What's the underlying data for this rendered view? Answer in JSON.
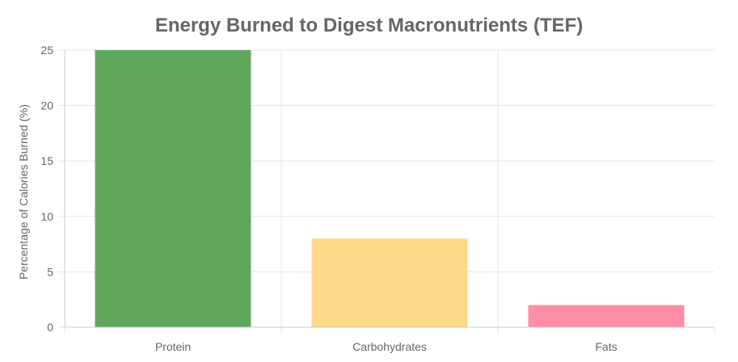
{
  "chart_data": {
    "type": "bar",
    "title": "Energy Burned to Digest Macronutrients (TEF)",
    "xlabel": "",
    "ylabel": "Percentage of Calories Burned (%)",
    "categories": [
      "Protein",
      "Carbohydrates",
      "Fats"
    ],
    "values": [
      25,
      8,
      2
    ],
    "ylim": [
      0,
      25
    ],
    "yticks": [
      0,
      5,
      10,
      15,
      20,
      25
    ],
    "grid": true,
    "legend": "none",
    "colors": {
      "bars": [
        "#5fa85b",
        "#fdd989",
        "#fe8ea5"
      ],
      "grid": "#e5e5e5",
      "axis": "#cccccc",
      "text": "#666666"
    }
  }
}
